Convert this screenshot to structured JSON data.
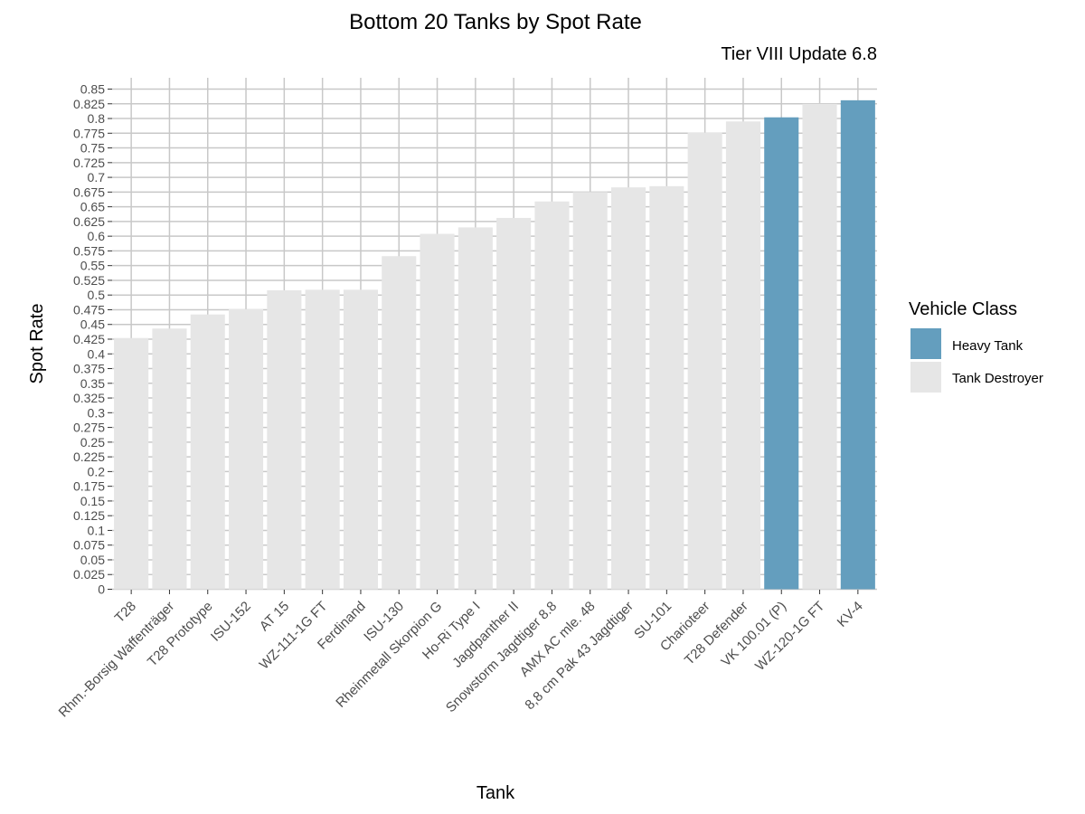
{
  "chart_data": {
    "type": "bar",
    "title": "Bottom 20 Tanks by Spot Rate",
    "subtitle": "Tier VIII Update 6.8",
    "xlabel": "Tank",
    "ylabel": "Spot Rate",
    "ylim": [
      0,
      0.85
    ],
    "ytick_step": 0.025,
    "yticks": [
      "0",
      "0.025",
      "0.05",
      "0.075",
      "0.1",
      "0.125",
      "0.15",
      "0.175",
      "0.2",
      "0.225",
      "0.25",
      "0.275",
      "0.3",
      "0.325",
      "0.35",
      "0.375",
      "0.4",
      "0.425",
      "0.45",
      "0.475",
      "0.5",
      "0.525",
      "0.55",
      "0.575",
      "0.6",
      "0.625",
      "0.65",
      "0.675",
      "0.7",
      "0.725",
      "0.75",
      "0.775",
      "0.8",
      "0.825",
      "0.85"
    ],
    "grid": true,
    "legend": {
      "title": "Vehicle Class",
      "position": "right",
      "entries": [
        {
          "label": "Heavy Tank",
          "color": "#649EBE"
        },
        {
          "label": "Tank Destroyer",
          "color": "#E6E6E6"
        }
      ]
    },
    "categories": [
      "T28",
      "Rhm.-Borsig Waffenträger",
      "T28 Prototype",
      "ISU-152",
      "AT 15",
      "WZ-111-1G FT",
      "Ferdinand",
      "ISU-130",
      "Rheinmetall Skorpion G",
      "Ho-Ri Type I",
      "Jagdpanther II",
      "Snowstorm Jagdtiger 8.8",
      "AMX AC mle. 48",
      "8,8 cm Pak 43 Jagdtiger",
      "SU-101",
      "Charioteer",
      "T28 Defender",
      "VK 100.01 (P)",
      "WZ-120-1G FT",
      "KV-4"
    ],
    "values": [
      0.427,
      0.443,
      0.467,
      0.476,
      0.508,
      0.509,
      0.509,
      0.566,
      0.604,
      0.615,
      0.631,
      0.659,
      0.675,
      0.683,
      0.685,
      0.776,
      0.795,
      0.802,
      0.825,
      0.831
    ],
    "classes": [
      "Tank Destroyer",
      "Tank Destroyer",
      "Tank Destroyer",
      "Tank Destroyer",
      "Tank Destroyer",
      "Tank Destroyer",
      "Tank Destroyer",
      "Tank Destroyer",
      "Tank Destroyer",
      "Tank Destroyer",
      "Tank Destroyer",
      "Tank Destroyer",
      "Tank Destroyer",
      "Tank Destroyer",
      "Tank Destroyer",
      "Tank Destroyer",
      "Tank Destroyer",
      "Heavy Tank",
      "Tank Destroyer",
      "Heavy Tank"
    ]
  }
}
